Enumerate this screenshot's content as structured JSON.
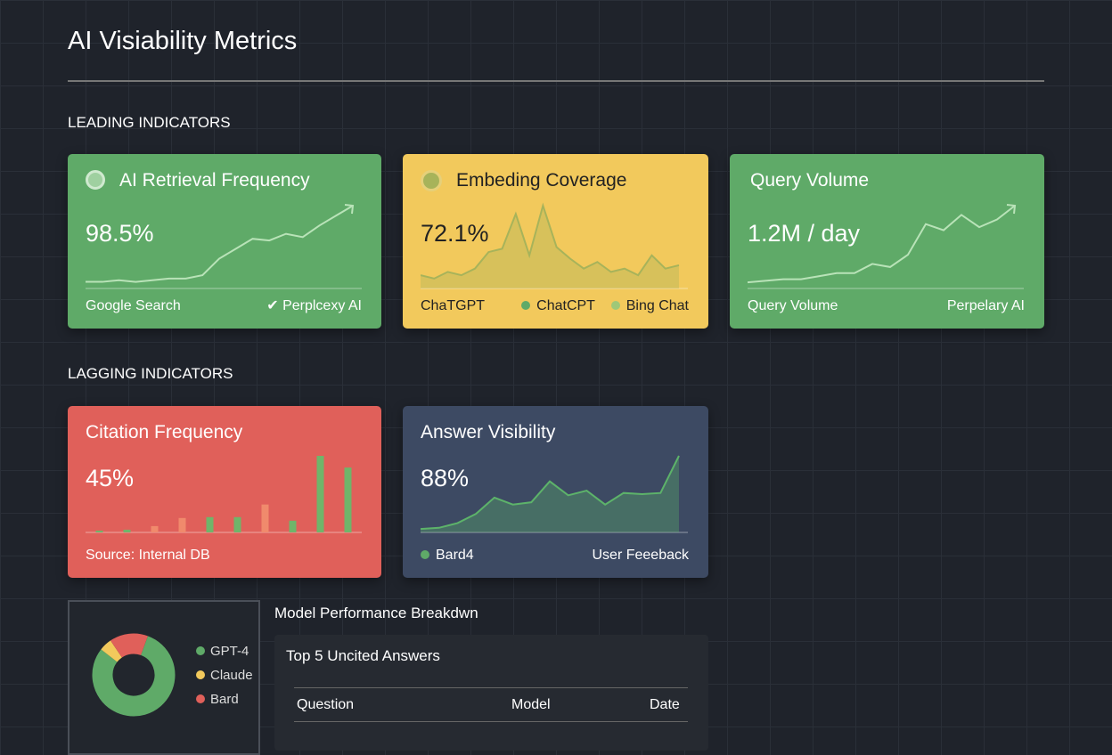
{
  "header": {
    "title": "AI Visiability Metrics"
  },
  "sections": [
    {
      "title": "LEADING INDICATORS",
      "cards": [
        {
          "title": "AI Retrieval Frequency",
          "value": "98.5%",
          "footer_left": "Google Search",
          "footer_right": "Perplcexy AI",
          "chart": {
            "type": "line",
            "color": "#b9e3b8",
            "values": [
              4,
              4,
              5,
              4,
              5,
              6,
              6,
              8,
              18,
              24,
              30,
              29,
              33,
              31,
              38,
              44,
              50
            ]
          }
        },
        {
          "title": "Embeding Coverage",
          "value": "72.1%",
          "footer_left": "ChaTGPT",
          "legend": [
            "ChatCPT",
            "Bing Chat"
          ],
          "chart": {
            "type": "area",
            "color": "#a7b35a",
            "values": [
              8,
              6,
              10,
              8,
              12,
              22,
              24,
              45,
              20,
              50,
              25,
              18,
              12,
              16,
              10,
              12,
              8,
              20,
              12,
              14
            ]
          }
        },
        {
          "title": "Query Volume",
          "value": "1.2M / day",
          "footer_left": "Query Volume",
          "footer_right": "Perpelary AI",
          "chart": {
            "type": "line",
            "color": "#b9e3b8",
            "values": [
              4,
              5,
              6,
              6,
              8,
              10,
              10,
              16,
              14,
              22,
              42,
              38,
              48,
              40,
              45,
              54
            ]
          }
        }
      ]
    },
    {
      "title": "LAGGING INDICATORS",
      "cards": [
        {
          "title": "Citation Frequency",
          "value": "45%",
          "footer_left": "Source: Internal DB",
          "chart": {
            "type": "bar",
            "values": [
              2,
              3,
              7,
              16,
              17,
              17,
              31,
              13,
              85,
              72
            ],
            "colors": [
              "#6fb56a",
              "#6fb56a",
              "#f08a6c",
              "#f08a6c",
              "#6fb56a",
              "#6fb56a",
              "#f08a6c",
              "#6fb56a",
              "#6fb56a",
              "#6fb56a"
            ]
          }
        },
        {
          "title": "Answer Visibility",
          "value": "88%",
          "footer_left": "Bard4",
          "footer_right": "User Feeeback",
          "chart": {
            "type": "area",
            "color": "#5db36a",
            "values": [
              3,
              4,
              8,
              16,
              30,
              24,
              26,
              44,
              32,
              36,
              24,
              34,
              33,
              34,
              66
            ]
          }
        }
      ]
    }
  ],
  "breakdown": {
    "title": "Model Performance Breakdwn",
    "donut": {
      "labels": [
        "GPT-4",
        "Claude",
        "Bard"
      ],
      "values": [
        80,
        5,
        15
      ],
      "colors": [
        "#5faa68",
        "#f2c95c",
        "#e0605a"
      ]
    }
  },
  "table": {
    "title": "Top 5 Uncited Answers",
    "columns": [
      "Question",
      "Model",
      "Date"
    ]
  }
}
